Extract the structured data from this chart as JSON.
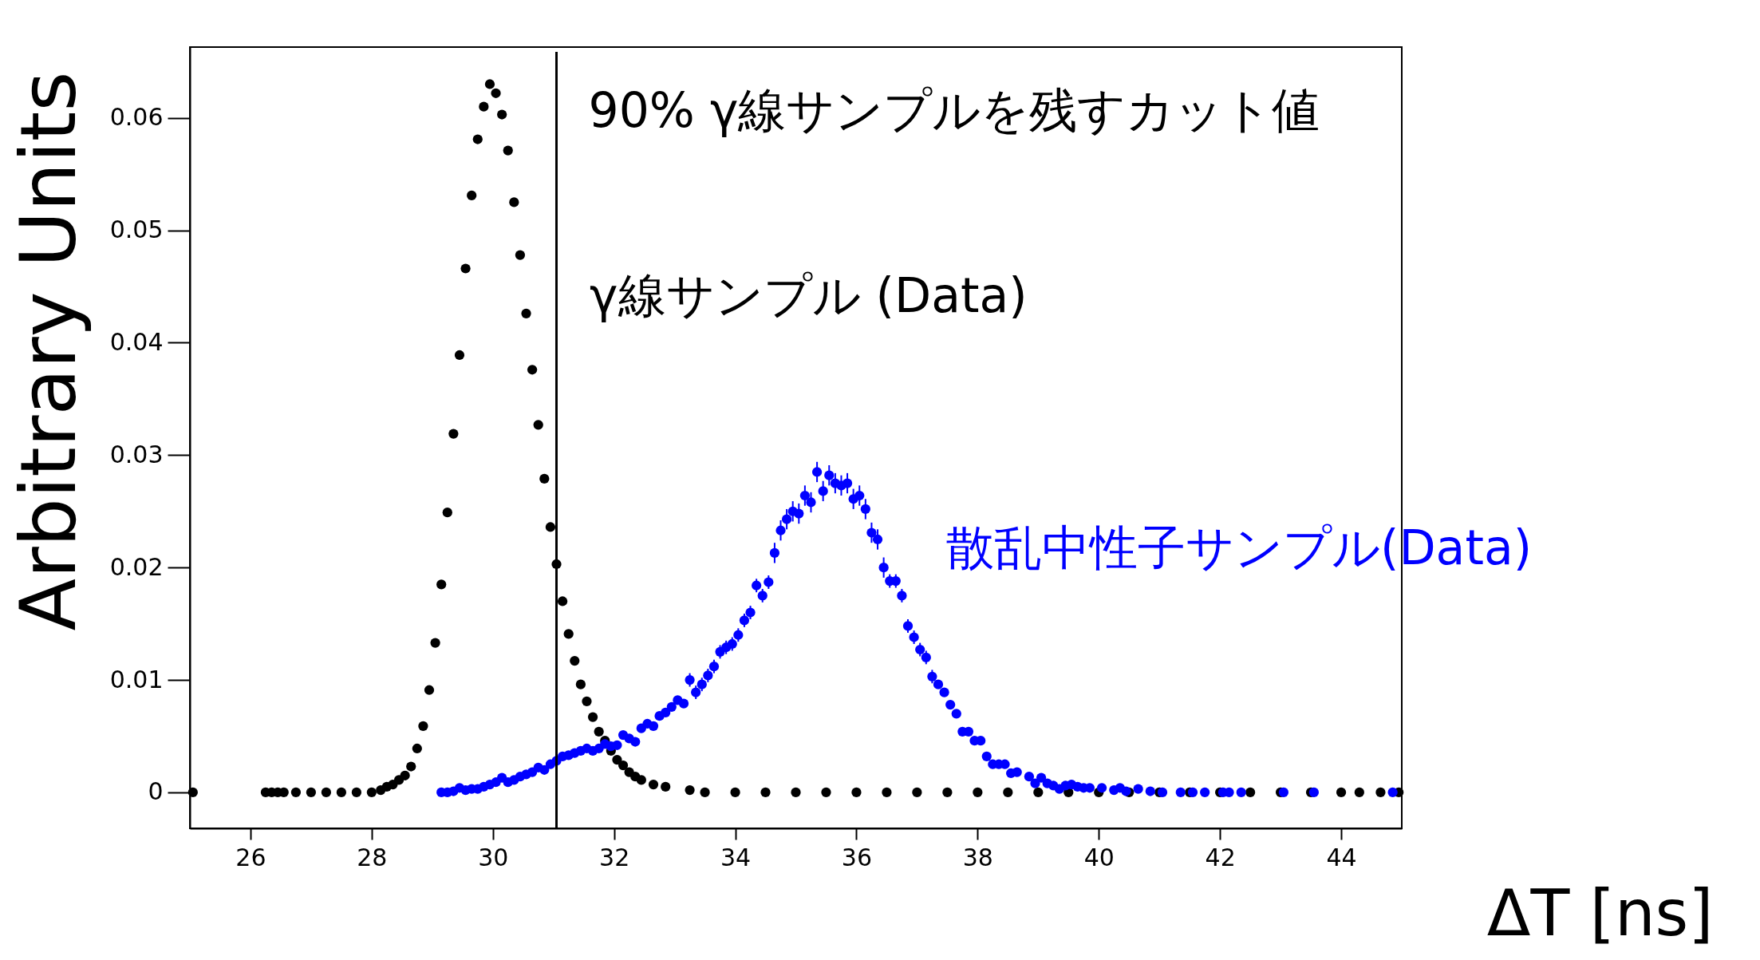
{
  "chart_data": {
    "type": "scatter",
    "xlabel": "ΔT [ns]",
    "ylabel": "Arbitrary Units",
    "xlim": [
      25,
      45
    ],
    "ylim": [
      -0.0032,
      0.0663
    ],
    "xticks": [
      26,
      28,
      30,
      32,
      34,
      36,
      38,
      40,
      42,
      44
    ],
    "yticks": [
      0,
      0.01,
      0.02,
      0.03,
      0.04,
      0.05,
      0.06
    ],
    "grid": false,
    "marker": "circle",
    "ref_lines": [
      {
        "axis": "x",
        "value": 31.05,
        "label": "90% γ線サンプルを残すカット値",
        "color": "#000000"
      }
    ],
    "series": [
      {
        "name": "γ線サンプル (Data)",
        "color": "#000000",
        "x": [
          25.05,
          26.25,
          26.35,
          26.45,
          26.55,
          26.75,
          27.0,
          27.25,
          27.5,
          27.75,
          28.0,
          28.15,
          28.25,
          28.35,
          28.45,
          28.55,
          28.65,
          28.75,
          28.85,
          28.95,
          29.05,
          29.15,
          29.25,
          29.35,
          29.45,
          29.55,
          29.65,
          29.75,
          29.85,
          29.95,
          30.05,
          30.15,
          30.25,
          30.35,
          30.45,
          30.55,
          30.65,
          30.75,
          30.85,
          30.95,
          31.05,
          31.15,
          31.25,
          31.35,
          31.45,
          31.55,
          31.65,
          31.75,
          31.85,
          31.95,
          32.05,
          32.15,
          32.25,
          32.35,
          32.45,
          32.65,
          32.85,
          33.25,
          33.5,
          34.0,
          34.5,
          35.0,
          35.5,
          36.0,
          36.5,
          37.0,
          37.5,
          38.0,
          38.5,
          39.0,
          39.5,
          40.0,
          40.5,
          41.0,
          41.5,
          42.0,
          42.5,
          43.0,
          43.5,
          44.0,
          44.3,
          44.65,
          44.95
        ],
        "values": [
          0,
          0,
          0,
          0,
          0,
          0,
          0,
          0,
          0,
          0,
          0,
          0.0002,
          0.0005,
          0.0007,
          0.0011,
          0.0015,
          0.0023,
          0.0039,
          0.0059,
          0.0091,
          0.0133,
          0.0185,
          0.0249,
          0.0319,
          0.0389,
          0.0466,
          0.0531,
          0.0581,
          0.061,
          0.063,
          0.0622,
          0.0603,
          0.0571,
          0.0525,
          0.0478,
          0.0426,
          0.0376,
          0.0327,
          0.0279,
          0.0236,
          0.0203,
          0.017,
          0.0141,
          0.0117,
          0.0096,
          0.0081,
          0.0067,
          0.0054,
          0.0046,
          0.0037,
          0.0029,
          0.0024,
          0.0018,
          0.0014,
          0.0011,
          0.0007,
          0.0005,
          0.0002,
          0,
          0,
          0,
          0,
          0,
          0,
          0,
          0,
          0,
          0,
          0,
          0,
          0,
          0,
          0,
          0,
          0,
          0,
          0,
          0,
          0,
          0,
          0,
          0,
          0
        ]
      },
      {
        "name": "散乱中性子サンプル(Data)",
        "color": "#0000ff",
        "x": [
          29.15,
          29.25,
          29.35,
          29.45,
          29.55,
          29.65,
          29.75,
          29.85,
          29.95,
          30.05,
          30.15,
          30.25,
          30.35,
          30.45,
          30.55,
          30.65,
          30.75,
          30.85,
          30.95,
          31.05,
          31.15,
          31.25,
          31.35,
          31.45,
          31.55,
          31.65,
          31.75,
          31.85,
          31.95,
          32.05,
          32.15,
          32.25,
          32.35,
          32.45,
          32.55,
          32.65,
          32.75,
          32.85,
          32.95,
          33.05,
          33.15,
          33.25,
          33.35,
          33.45,
          33.55,
          33.65,
          33.75,
          33.85,
          33.95,
          34.05,
          34.15,
          34.25,
          34.35,
          34.45,
          34.55,
          34.65,
          34.75,
          34.85,
          34.95,
          35.05,
          35.15,
          35.25,
          35.35,
          35.45,
          35.55,
          35.65,
          35.75,
          35.85,
          35.95,
          36.05,
          36.15,
          36.25,
          36.35,
          36.45,
          36.55,
          36.65,
          36.75,
          36.85,
          36.95,
          37.05,
          37.15,
          37.25,
          37.35,
          37.45,
          37.55,
          37.65,
          37.75,
          37.85,
          37.95,
          38.05,
          38.15,
          38.25,
          38.35,
          38.45,
          38.55,
          38.65,
          38.85,
          38.95,
          39.05,
          39.15,
          39.25,
          39.35,
          39.45,
          39.55,
          39.65,
          39.75,
          39.85,
          40.05,
          40.25,
          40.35,
          40.45,
          40.65,
          40.85,
          41.05,
          41.35,
          41.55,
          41.75,
          42.05,
          42.15,
          42.35,
          43.05,
          43.55,
          44.85
        ],
        "values": [
          0,
          0,
          0.0001,
          0.0004,
          0.0002,
          0.0003,
          0.0003,
          0.0005,
          0.0007,
          0.0009,
          0.0013,
          0.0009,
          0.0011,
          0.0014,
          0.0016,
          0.0018,
          0.0022,
          0.002,
          0.0025,
          0.0028,
          0.0032,
          0.0033,
          0.0035,
          0.0037,
          0.0039,
          0.0037,
          0.0039,
          0.0043,
          0.0041,
          0.0042,
          0.0051,
          0.0048,
          0.0045,
          0.0057,
          0.0061,
          0.0059,
          0.0068,
          0.0071,
          0.0076,
          0.0082,
          0.0079,
          0.01,
          0.0089,
          0.0096,
          0.0104,
          0.0112,
          0.0125,
          0.0129,
          0.0132,
          0.014,
          0.0153,
          0.016,
          0.0184,
          0.0175,
          0.0187,
          0.0213,
          0.0233,
          0.0243,
          0.025,
          0.0248,
          0.0264,
          0.0258,
          0.0285,
          0.0268,
          0.0282,
          0.0275,
          0.0273,
          0.0275,
          0.0261,
          0.0264,
          0.0252,
          0.0231,
          0.0225,
          0.02,
          0.0188,
          0.0188,
          0.0175,
          0.0148,
          0.0138,
          0.0127,
          0.012,
          0.0103,
          0.0096,
          0.0089,
          0.0078,
          0.007,
          0.0054,
          0.0054,
          0.0046,
          0.0046,
          0.0032,
          0.0025,
          0.0025,
          0.0025,
          0.0017,
          0.0018,
          0.0014,
          0.0008,
          0.0013,
          0.0008,
          0.0006,
          0.0003,
          0.0006,
          0.0007,
          0.0005,
          0.0004,
          0.0004,
          0.0004,
          0.0002,
          0.0004,
          0.0001,
          0.0003,
          0.0001,
          0,
          0,
          0,
          0,
          0,
          0,
          0,
          0,
          0,
          0
        ],
        "errors": [
          null,
          null,
          null,
          null,
          null,
          null,
          null,
          null,
          null,
          null,
          null,
          null,
          null,
          null,
          null,
          null,
          null,
          null,
          null,
          null,
          null,
          null,
          null,
          null,
          null,
          null,
          null,
          null,
          null,
          null,
          null,
          null,
          null,
          null,
          null,
          null,
          null,
          null,
          null,
          null,
          null,
          0.0006,
          0.0006,
          0.0006,
          0.0006,
          0.0006,
          0.0006,
          0.0006,
          0.0006,
          0.0006,
          0.0006,
          0.0006,
          0.0006,
          0.0006,
          0.0006,
          0.0009,
          0.0009,
          0.0009,
          0.0009,
          0.0009,
          0.0009,
          0.0009,
          0.0009,
          0.0009,
          0.0009,
          0.0009,
          0.0009,
          0.0009,
          0.0009,
          0.0009,
          0.0009,
          0.0009,
          0.0009,
          0.0009,
          0.0006,
          0.0006,
          0.0006,
          0.0006,
          0.0006,
          0.0006,
          0.0006,
          0.0006,
          null,
          null,
          null,
          null,
          null,
          null,
          null,
          null,
          null,
          null,
          null,
          null,
          null,
          null,
          null,
          null,
          null,
          null,
          null,
          null,
          null,
          null,
          null,
          null,
          null,
          null,
          null,
          null,
          null,
          null,
          null,
          null,
          null,
          null,
          null,
          null,
          null,
          null,
          null,
          null,
          null
        ]
      }
    ]
  }
}
